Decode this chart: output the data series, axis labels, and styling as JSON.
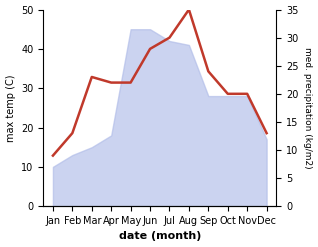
{
  "months": [
    "Jan",
    "Feb",
    "Mar",
    "Apr",
    "May",
    "Jun",
    "Jul",
    "Aug",
    "Sep",
    "Oct",
    "Nov",
    "Dec"
  ],
  "x_positions": [
    0,
    1,
    2,
    3,
    4,
    5,
    6,
    7,
    8,
    9,
    10,
    11
  ],
  "max_temp": [
    10,
    13,
    15,
    18,
    45,
    45,
    42,
    41,
    28,
    28,
    28,
    17
  ],
  "precipitation": [
    9,
    13,
    23,
    22,
    22,
    28,
    30,
    35,
    24,
    20,
    20,
    13
  ],
  "temp_ylim": [
    0,
    50
  ],
  "precip_ylim": [
    0,
    35
  ],
  "temp_yticks": [
    0,
    10,
    20,
    30,
    40,
    50
  ],
  "precip_yticks": [
    0,
    5,
    10,
    15,
    20,
    25,
    30,
    35
  ],
  "fill_color": "#b0bce8",
  "fill_alpha": 0.65,
  "line_color": "#c0392b",
  "line_width": 1.8,
  "xlabel": "date (month)",
  "ylabel_left": "max temp (C)",
  "ylabel_right": "med. precipitation (kg/m2)",
  "background_color": "#ffffff"
}
